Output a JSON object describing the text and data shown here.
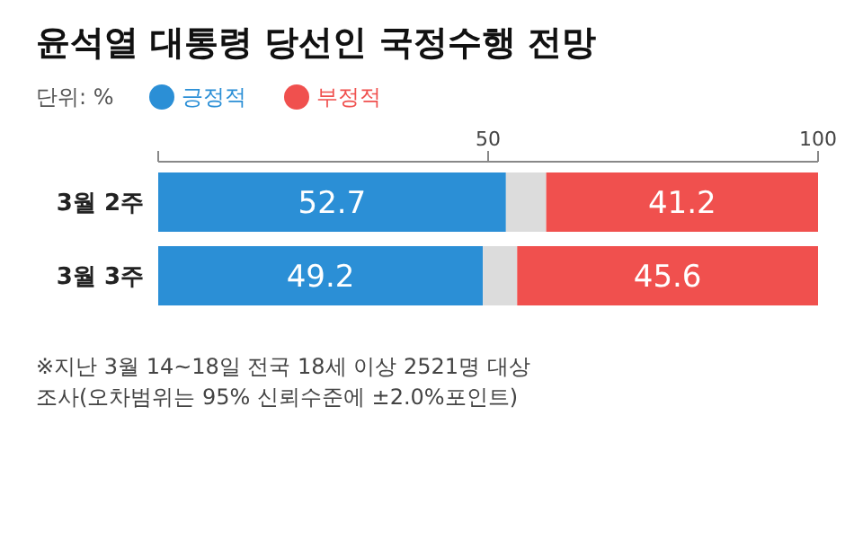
{
  "chart_data": {
    "type": "bar",
    "orientation": "horizontal",
    "stacked": true,
    "title": "윤석열 대통령 당선인 국정수행 전망",
    "legend_title": "단위: %",
    "legend": "top left",
    "categories": [
      "3월 2주",
      "3월 3주"
    ],
    "series": [
      {
        "name": "긍정적",
        "color": "#2b8fd6",
        "values": [
          52.7,
          49.2
        ],
        "value_labels": [
          "52.7",
          "49.2"
        ]
      },
      {
        "color": "#dcdcdc",
        "values": [
          6.1,
          5.2
        ],
        "value_labels": [
          null,
          null
        ]
      },
      {
        "name": "부정적",
        "color": "#f0504e",
        "values": [
          41.2,
          45.6
        ],
        "value_labels": [
          "41.2",
          "45.6"
        ]
      }
    ],
    "xlim": [
      0,
      100
    ],
    "xticks": [
      {
        "value": 0,
        "label": null
      },
      50,
      100
    ],
    "annotations": [
      "※지난 3월 14~18일 전국 18세 이상 2521명 대상 조사(오차범위는 95% 신뢰수준에 ±2.0%포인트)"
    ]
  }
}
